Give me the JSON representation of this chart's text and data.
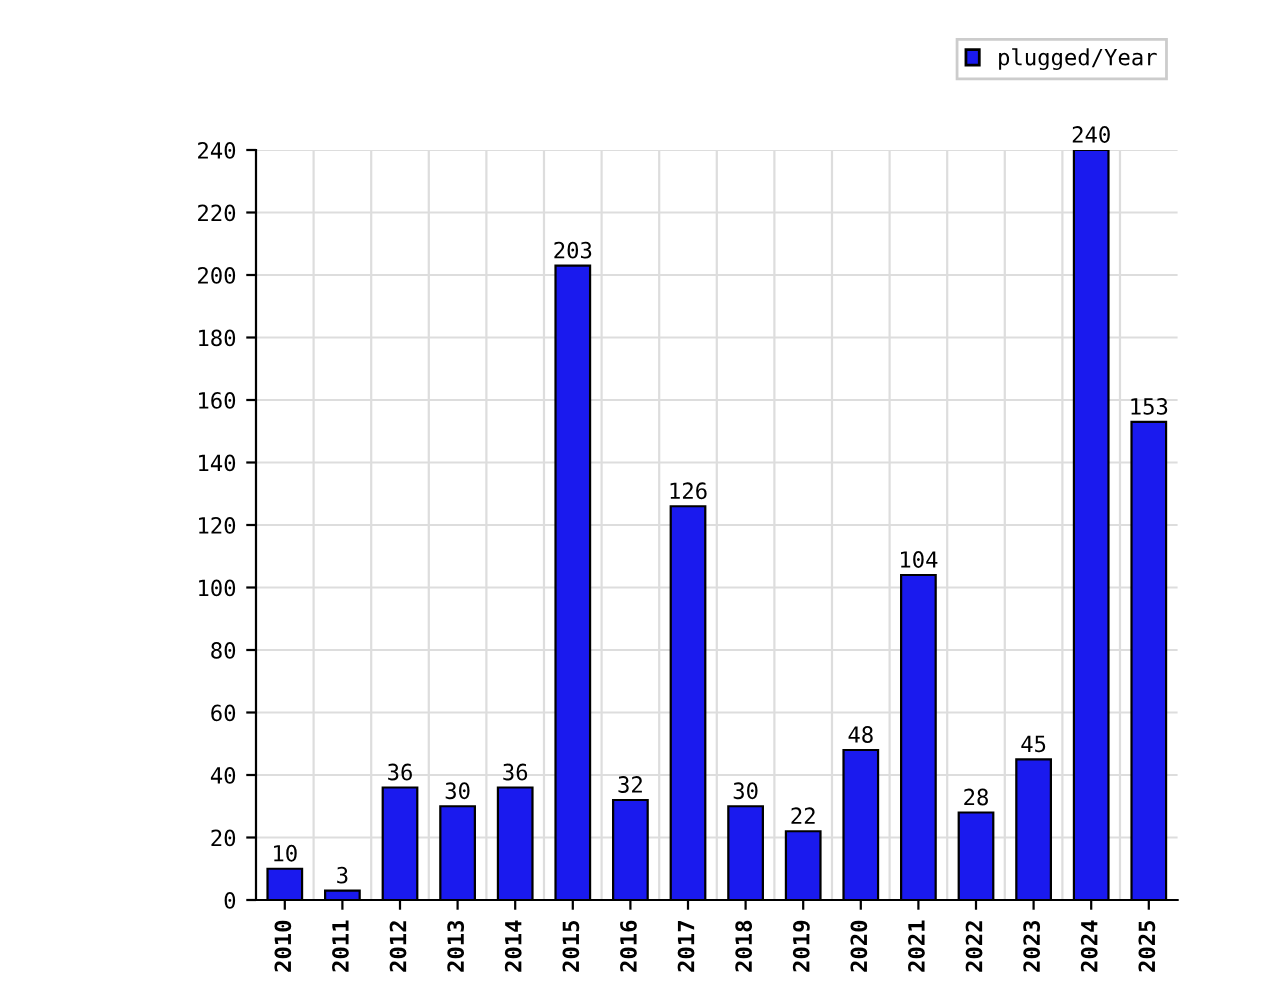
{
  "chart_data": {
    "type": "bar",
    "categories": [
      "2010",
      "2011",
      "2012",
      "2013",
      "2014",
      "2015",
      "2016",
      "2017",
      "2018",
      "2019",
      "2020",
      "2021",
      "2022",
      "2023",
      "2024",
      "2025"
    ],
    "series": [
      {
        "name": "plugged/Year",
        "color": "#1a1aee",
        "values": [
          10,
          3,
          36,
          30,
          36,
          203,
          32,
          126,
          30,
          22,
          48,
          104,
          28,
          45,
          240,
          153
        ]
      }
    ],
    "ylim": [
      0,
      240
    ],
    "yticks": [
      0,
      20,
      40,
      60,
      80,
      100,
      120,
      140,
      160,
      180,
      200,
      220,
      240
    ],
    "grid": true,
    "legend": "top right",
    "data_labels": true
  }
}
